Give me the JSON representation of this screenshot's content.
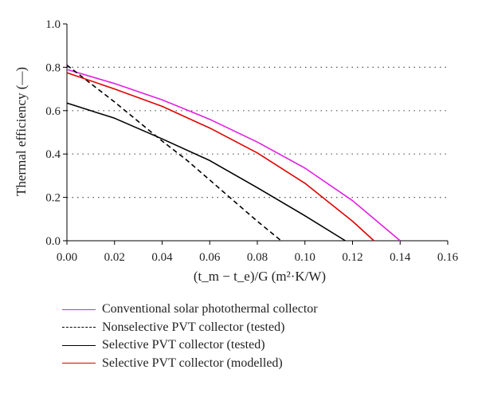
{
  "chart_data": {
    "type": "line",
    "xlabel": "(t_m − t_e)/G (m²·K/W)",
    "ylabel": "Thermal efficiency (—)",
    "xlim": [
      0,
      0.16
    ],
    "ylim": [
      0,
      1.0
    ],
    "x_ticks": [
      "0.00",
      "0.02",
      "0.04",
      "0.06",
      "0.08",
      "0.10",
      "0.12",
      "0.14",
      "0.16"
    ],
    "y_ticks": [
      "0.0",
      "0.2",
      "0.4",
      "0.6",
      "0.8",
      "1.0"
    ],
    "grid": "horizontal dotted",
    "legend_position": "below",
    "series": [
      {
        "name": "Conventional solar photothermal collector",
        "color": "#e020e0",
        "style": "solid",
        "x": [
          0,
          0.02,
          0.04,
          0.06,
          0.08,
          0.1,
          0.12,
          0.14
        ],
        "y": [
          0.79,
          0.725,
          0.65,
          0.56,
          0.455,
          0.335,
          0.185,
          0.0
        ]
      },
      {
        "name": "Nonselective PVT collector (tested)",
        "color": "#000000",
        "style": "dashed",
        "x": [
          0,
          0.01,
          0.02,
          0.03,
          0.04,
          0.05,
          0.06,
          0.07,
          0.08,
          0.09
        ],
        "y": [
          0.81,
          0.725,
          0.64,
          0.55,
          0.46,
          0.375,
          0.28,
          0.185,
          0.09,
          0.0
        ]
      },
      {
        "name": "Selective PVT collector (tested)",
        "color": "#000000",
        "style": "solid",
        "x": [
          0,
          0.02,
          0.04,
          0.06,
          0.08,
          0.1,
          0.117
        ],
        "y": [
          0.635,
          0.565,
          0.47,
          0.37,
          0.245,
          0.115,
          0.0
        ]
      },
      {
        "name": "Selective PVT collector (modelled)",
        "color": "#e00000",
        "style": "solid",
        "x": [
          0,
          0.02,
          0.04,
          0.06,
          0.08,
          0.1,
          0.12,
          0.129
        ],
        "y": [
          0.775,
          0.7,
          0.62,
          0.52,
          0.405,
          0.265,
          0.09,
          0.0
        ]
      }
    ]
  }
}
